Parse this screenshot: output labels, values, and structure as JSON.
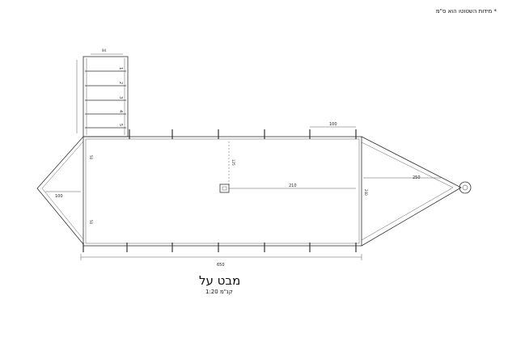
{
  "sheet": {
    "note": "* מידות השטוטו הוא ס\"מ",
    "title": "מבט על",
    "scale": "קנ\"מ 1:20"
  },
  "dimensions": {
    "overall_length": "650",
    "body_width": "210",
    "drawbar_length": "250",
    "center_line": "240",
    "side_gap_top": "50",
    "side_gap_bottom": "50",
    "front_offset": "100",
    "top_span": "100",
    "center_offset": "125",
    "step_width": "94"
  },
  "step_labels": [
    "5",
    "4",
    "3",
    "2",
    "1"
  ]
}
